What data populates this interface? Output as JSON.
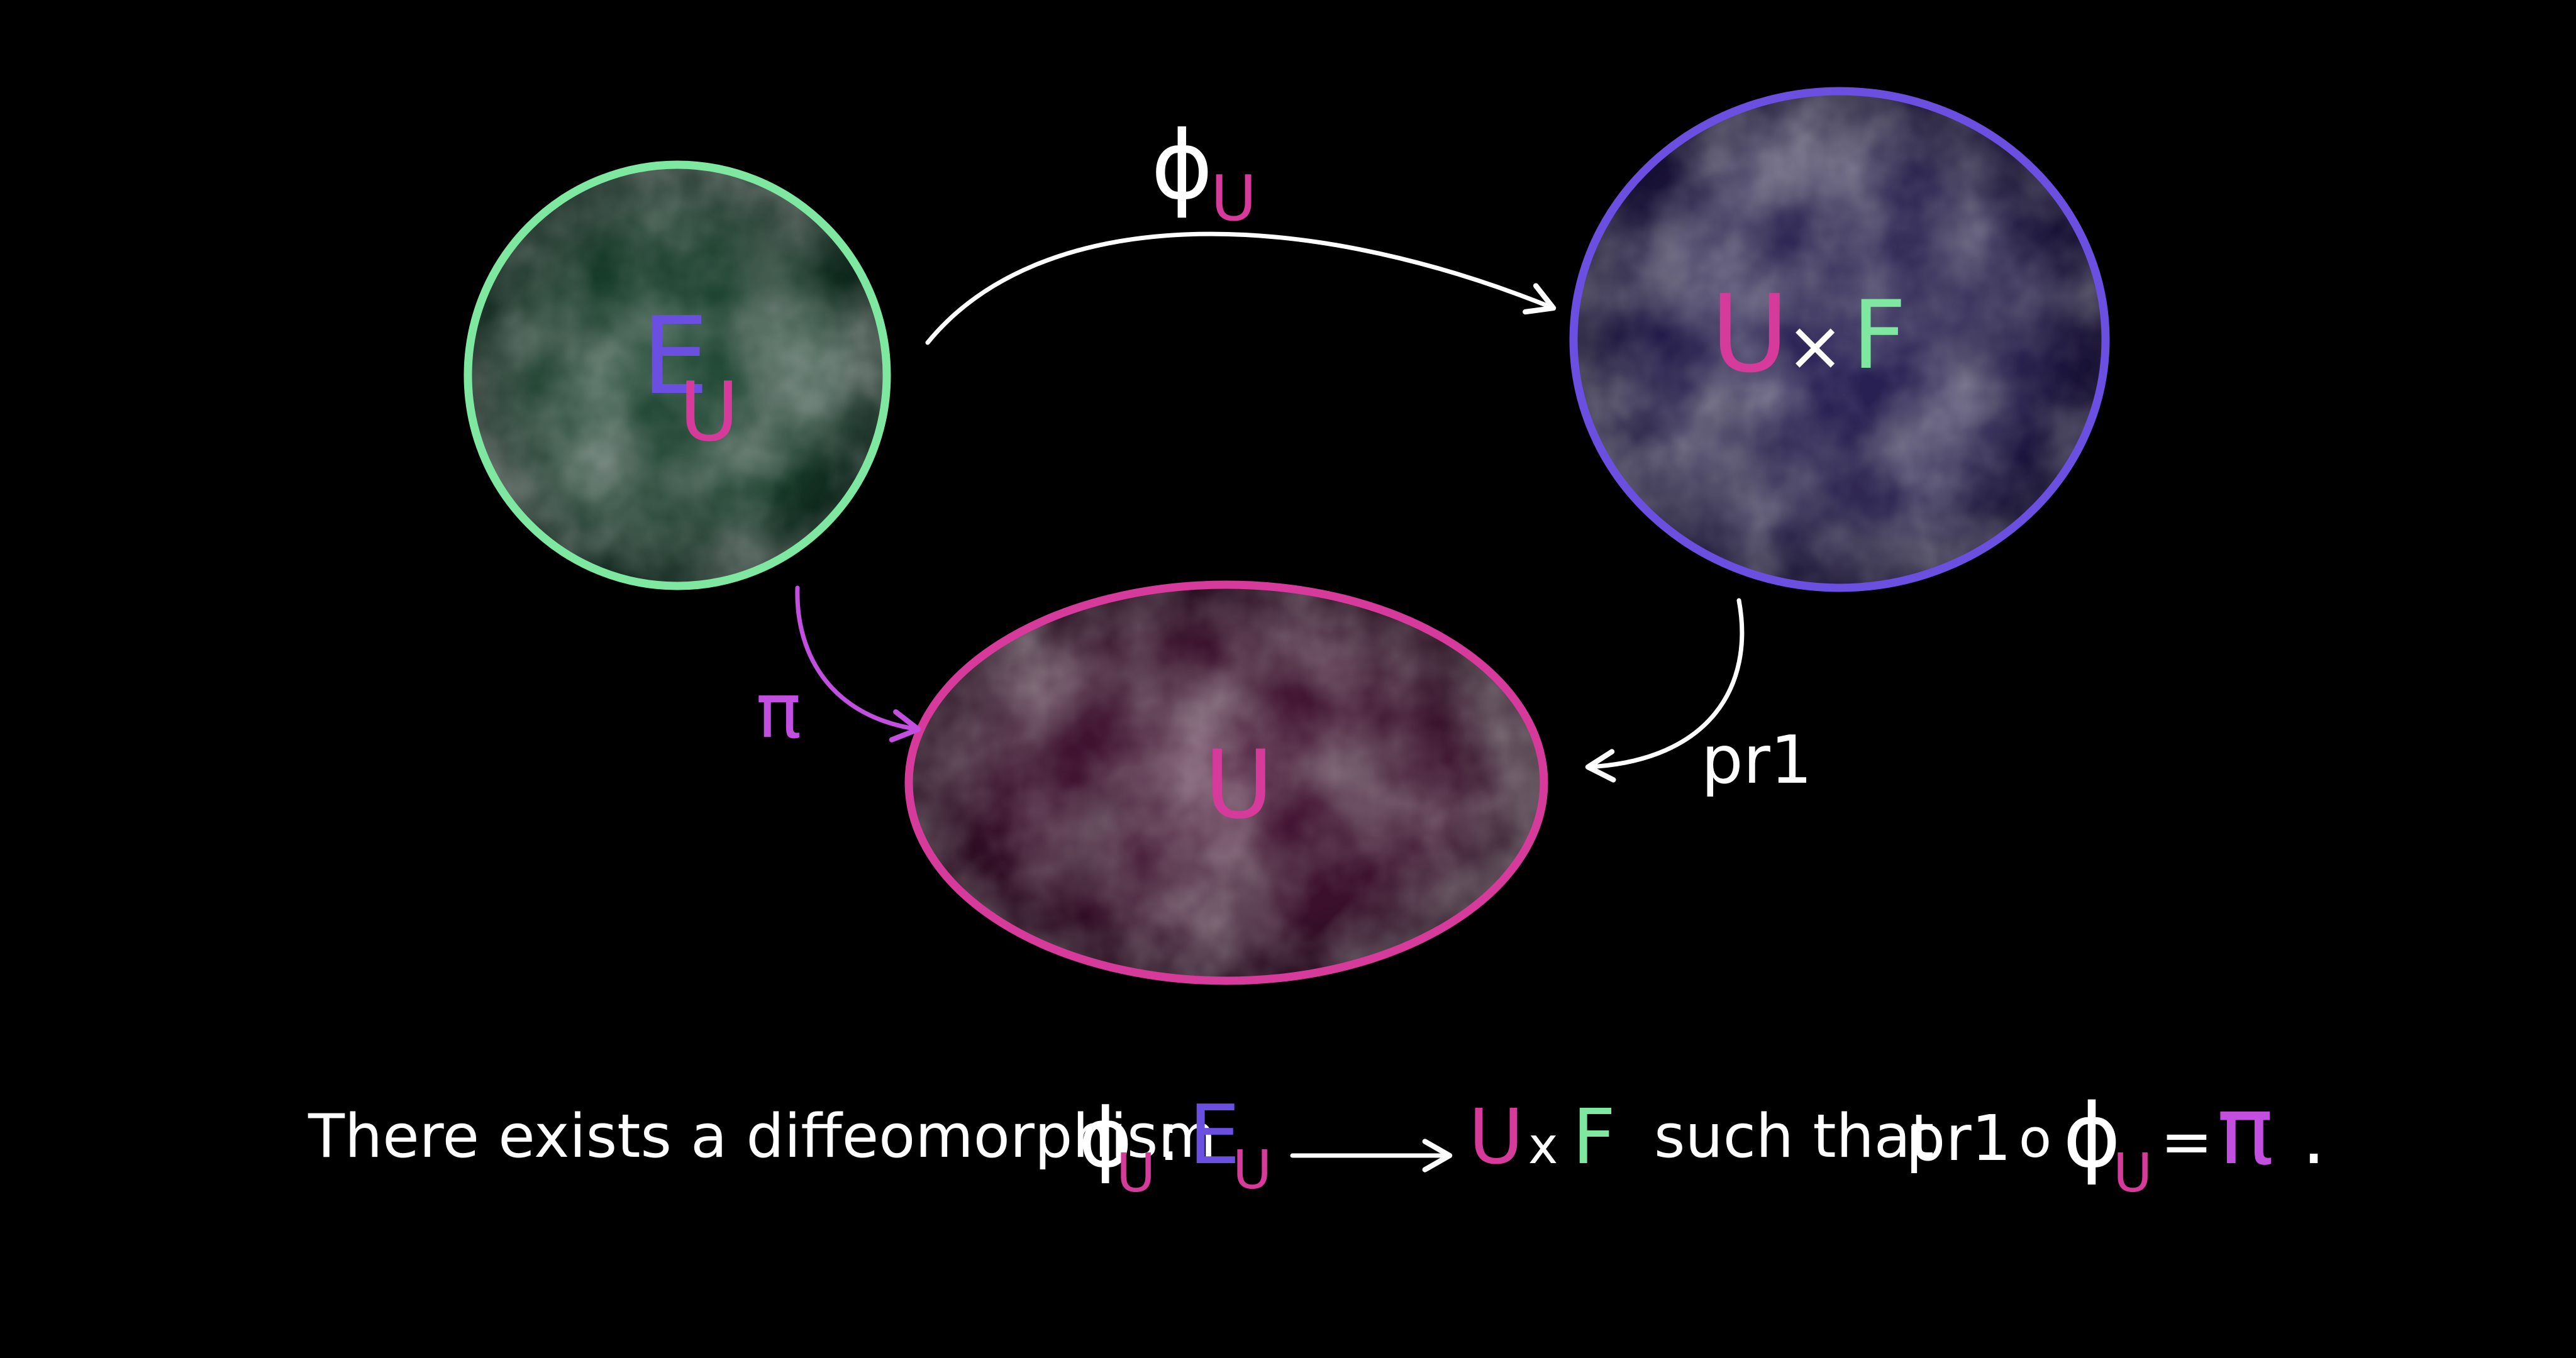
{
  "colors": {
    "background": "#000000",
    "white": "#ffffff",
    "green": "#7ee8a0",
    "purple": "#6a4fe0",
    "pink": "#d63a9a",
    "violet": "#c24fe0"
  },
  "nodes": {
    "total_space": {
      "base": "E",
      "sub": "U"
    },
    "product_space": {
      "left": "U",
      "times": "×",
      "right": "F"
    },
    "base_space": {
      "label": "U"
    }
  },
  "arrows": {
    "phi": {
      "base": "ϕ",
      "sub": "U"
    },
    "pi": {
      "label": "π"
    },
    "pr1": {
      "label": "pr1"
    }
  },
  "caption": {
    "lead": "There exists a diffeomorphism",
    "phi": "ϕ",
    "phi_sub": "U",
    "colon": ":",
    "E": "E",
    "E_sub": "U",
    "U": "U",
    "times": "x",
    "F": "F",
    "such_that": "such that",
    "pr1": "pr1",
    "compose": "o",
    "phi2": "ϕ",
    "phi2_sub": "U",
    "equals": "=",
    "pi": "π",
    "period": "."
  }
}
